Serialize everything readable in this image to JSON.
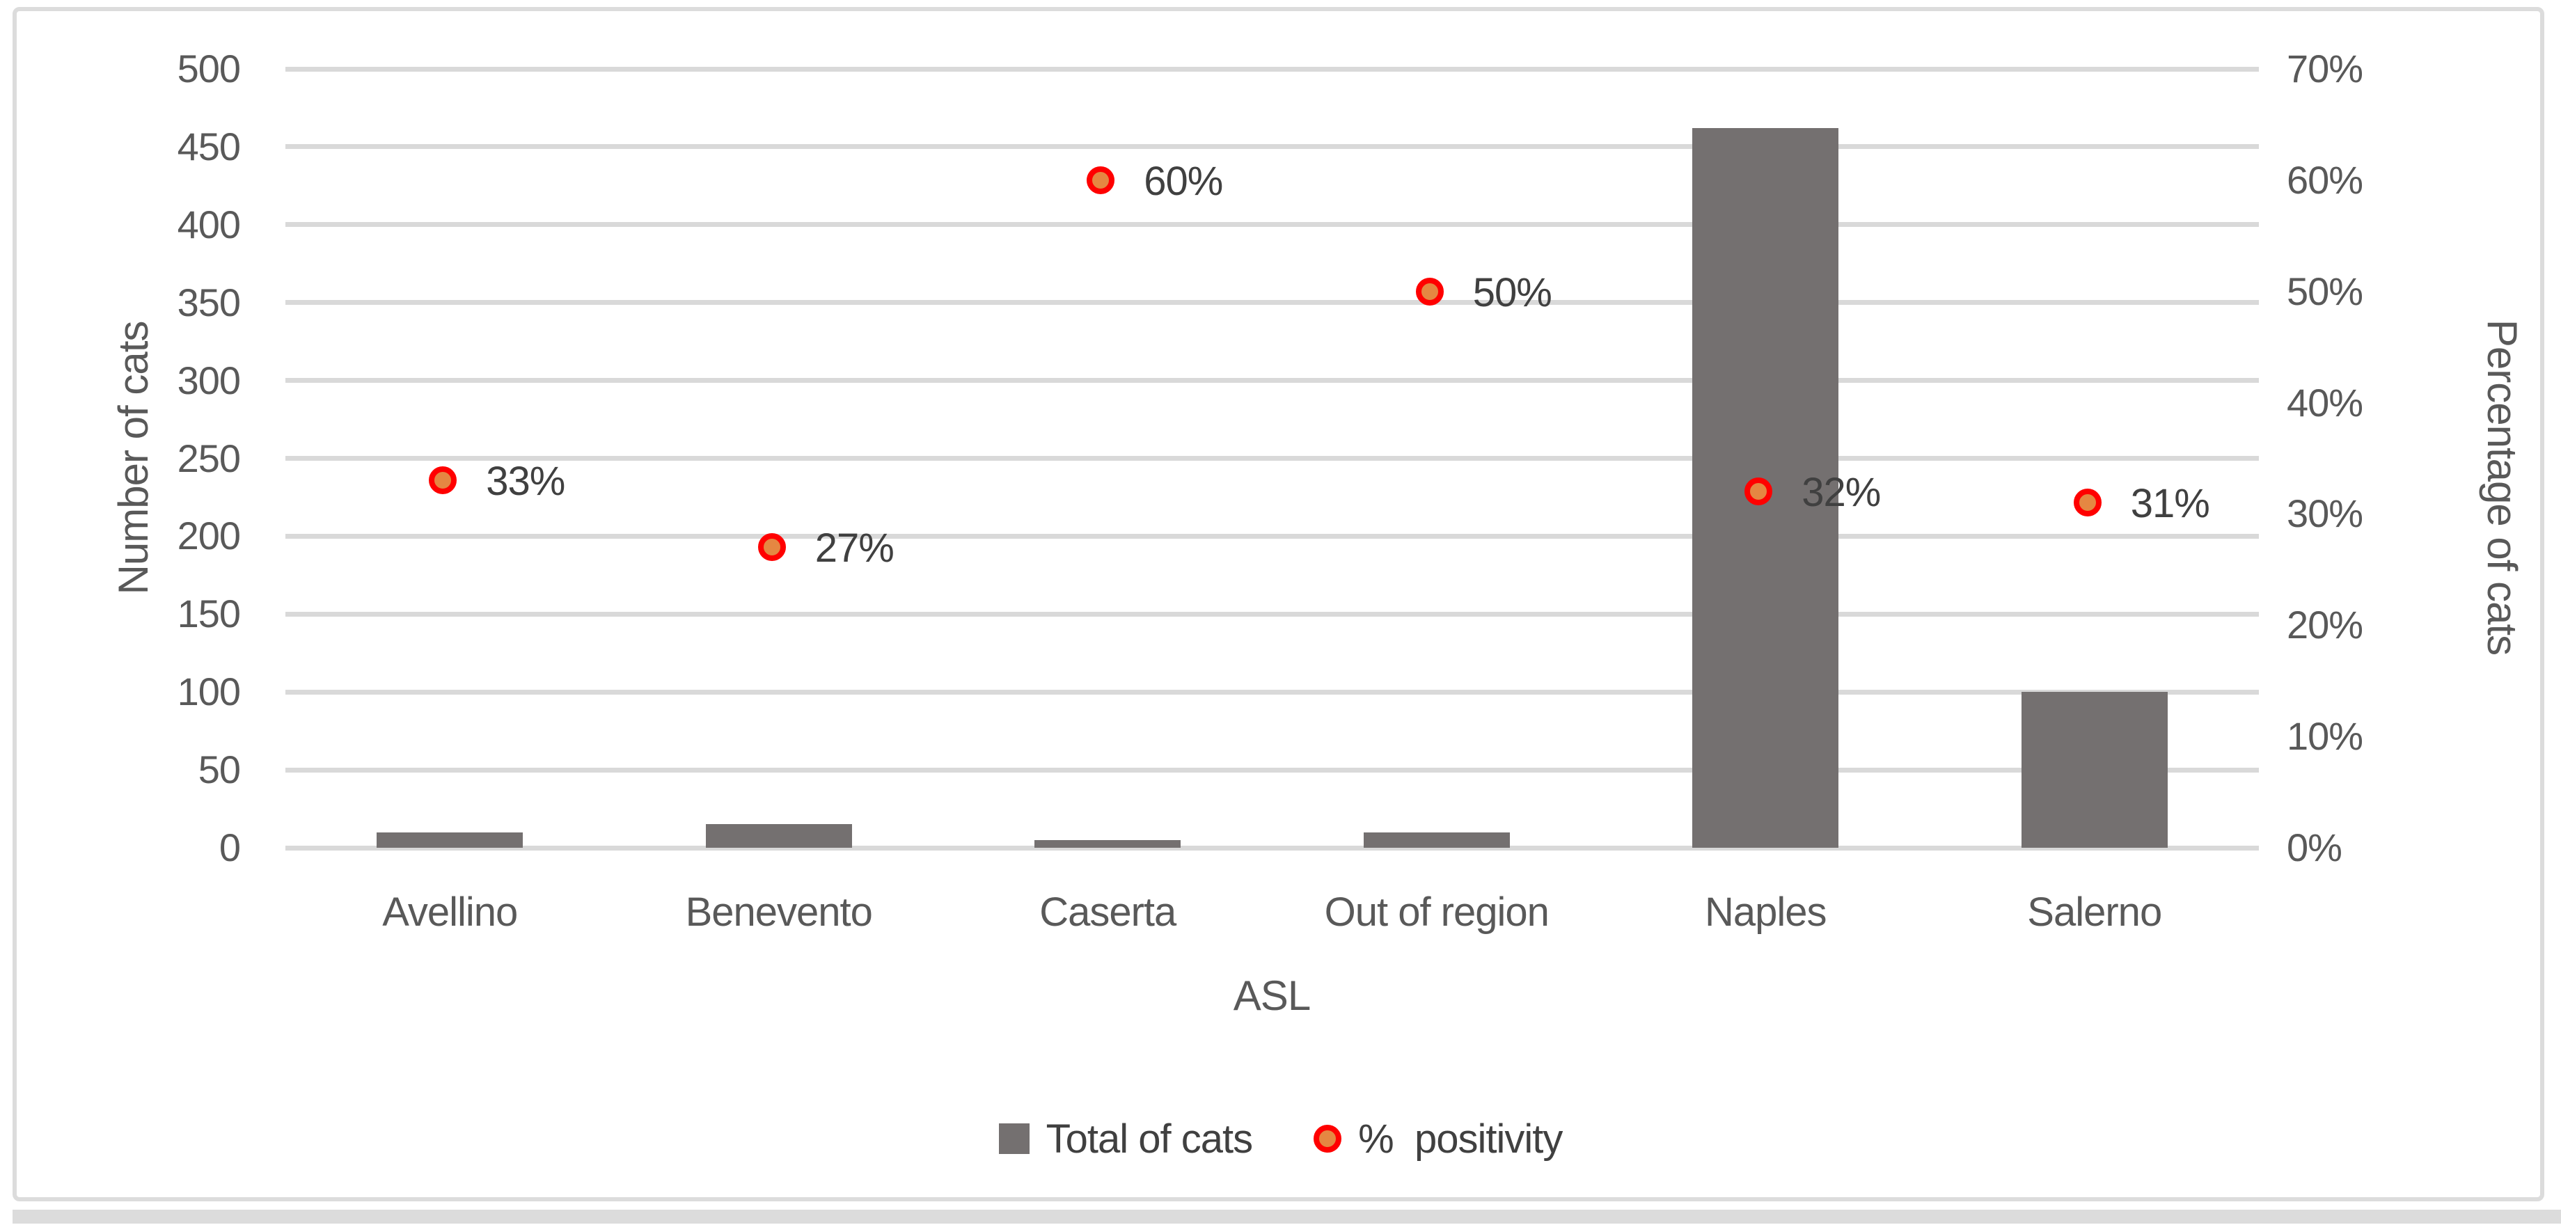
{
  "figure": {
    "background": "#ffffff",
    "border_color": "#dcdcdc"
  },
  "chart_data": {
    "type": "combo",
    "categories": [
      "Avellino",
      "Benevento",
      "Caserta",
      "Out of region",
      "Naples",
      "Salerno"
    ],
    "series": [
      {
        "name": "Total of cats",
        "type": "bar",
        "axis": "left",
        "color": "#747070",
        "values": [
          10,
          15,
          5,
          10,
          462,
          100
        ]
      },
      {
        "name": "% positivity",
        "type": "scatter",
        "axis": "right",
        "marker_fill": "#e58742",
        "marker_border": "#ff0000",
        "values": [
          33,
          27,
          60,
          50,
          32,
          31
        ],
        "point_labels": [
          "33%",
          "27%",
          "60%",
          "50%",
          "32%",
          "31%"
        ]
      }
    ],
    "xlabel": "ASL",
    "ylabel_left": "Number of cats",
    "ylabel_right": "Percentage of cats",
    "left_axis": {
      "min": 0,
      "max": 500,
      "step": 50,
      "ticks": [
        "0",
        "50",
        "100",
        "150",
        "200",
        "250",
        "300",
        "350",
        "400",
        "450",
        "500"
      ]
    },
    "right_axis": {
      "min": 0,
      "max": 70,
      "step": 10,
      "ticks": [
        "0%",
        "10%",
        "20%",
        "30%",
        "40%",
        "50%",
        "60%",
        "70%"
      ]
    },
    "grid": true,
    "gridline_color": "#d9d9d9",
    "tick_color": "#595959",
    "data_label_color": "#404040",
    "legend_position": "bottom",
    "legend": [
      {
        "label": "Total of cats",
        "marker": "square"
      },
      {
        "label": "%  positivity",
        "marker": "dot"
      }
    ]
  }
}
